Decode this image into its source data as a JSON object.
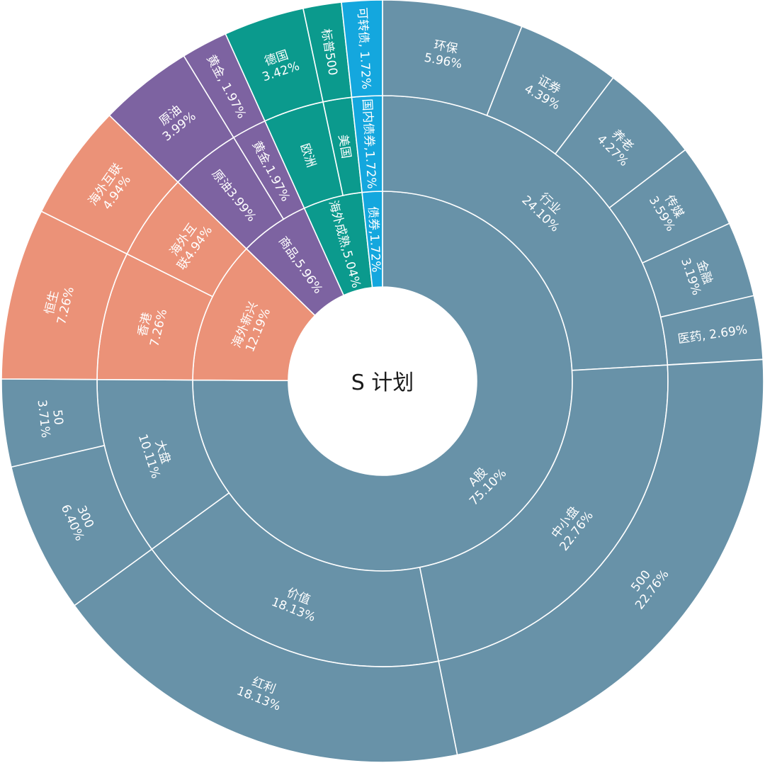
{
  "chart_data": {
    "type": "sunburst",
    "title": "S 计划",
    "colors": {
      "A股": "#6892a8",
      "海外新兴": "#eb9278",
      "商品": "#7d63a1",
      "海外成熟": "#0b9a8d",
      "债券": "#14a7de",
      "border": "#ffffff",
      "center_fill": "#ffffff"
    },
    "nodes": [
      {
        "name": "A股",
        "label": "A股\n75.10%",
        "value": 75.1,
        "children": [
          {
            "name": "行业",
            "label": "行业\n24.10%",
            "value": 24.1,
            "children": [
              {
                "name": "环保",
                "label": "环保\n5.96%",
                "value": 5.96
              },
              {
                "name": "证券",
                "label": "证券\n4.39%",
                "value": 4.39
              },
              {
                "name": "养老",
                "label": "养老\n4.27%",
                "value": 4.27
              },
              {
                "name": "传媒",
                "label": "传媒\n3.59%",
                "value": 3.59
              },
              {
                "name": "金融",
                "label": "金融\n3.19%",
                "value": 3.19
              },
              {
                "name": "医药",
                "label": "医药, 2.69%",
                "value": 2.69
              }
            ]
          },
          {
            "name": "中小盘",
            "label": "中小盘\n22.76%",
            "value": 22.76,
            "children": [
              {
                "name": "500",
                "label": "500\n22.76%",
                "value": 22.76
              }
            ]
          },
          {
            "name": "价值",
            "label": "价值\n18.13%",
            "value": 18.13,
            "children": [
              {
                "name": "红利",
                "label": "红利\n18.13%",
                "value": 18.13
              }
            ]
          },
          {
            "name": "大盘",
            "label": "大盘\n10.11%",
            "value": 10.11,
            "children": [
              {
                "name": "300",
                "label": "300\n6.40%",
                "value": 6.4
              },
              {
                "name": "50",
                "label": "50\n3.71%",
                "value": 3.71
              }
            ]
          }
        ]
      },
      {
        "name": "海外新兴",
        "label": "海外新兴\n12.19%",
        "value": 12.19,
        "children": [
          {
            "name": "香港",
            "label": "香港\n7.26%",
            "value": 7.26,
            "children": [
              {
                "name": "恒生",
                "label": "恒生\n7.26%",
                "value": 7.26
              }
            ]
          },
          {
            "name": "海外互联",
            "label": "海外互\n联4.94%",
            "value": 4.94,
            "children": [
              {
                "name": "海外互联",
                "label": "海外互联\n4.94%",
                "value": 4.94
              }
            ]
          }
        ]
      },
      {
        "name": "商品",
        "label": "商品,5.96%",
        "value": 5.96,
        "children": [
          {
            "name": "原油",
            "label": "原油3.99%",
            "value": 3.99,
            "children": [
              {
                "name": "原油",
                "label": "原油\n3.99%",
                "value": 3.99
              }
            ]
          },
          {
            "name": "黄金",
            "label": "黄金,1.97%",
            "value": 1.97,
            "children": [
              {
                "name": "黄金",
                "label": "黄金, 1.97%",
                "value": 1.97
              }
            ]
          }
        ]
      },
      {
        "name": "海外成熟",
        "label": "海外成熟,5.04%",
        "value": 5.04,
        "children": [
          {
            "name": "欧洲",
            "label": "欧洲",
            "value": 3.42,
            "children": [
              {
                "name": "德国",
                "label": "德国\n3.42%",
                "value": 3.42
              }
            ]
          },
          {
            "name": "美国",
            "label": "美国",
            "value": 1.62,
            "children": [
              {
                "name": "标普500",
                "label": "标普500",
                "value": 1.62
              }
            ]
          }
        ]
      },
      {
        "name": "债券",
        "label": "债券,1.72%",
        "value": 1.72,
        "children": [
          {
            "name": "国内债券",
            "label": "国内债券,1.72%",
            "value": 1.72,
            "children": [
              {
                "name": "可转债",
                "label": "可转债, 1.72%",
                "value": 1.72
              }
            ]
          }
        ]
      }
    ]
  }
}
